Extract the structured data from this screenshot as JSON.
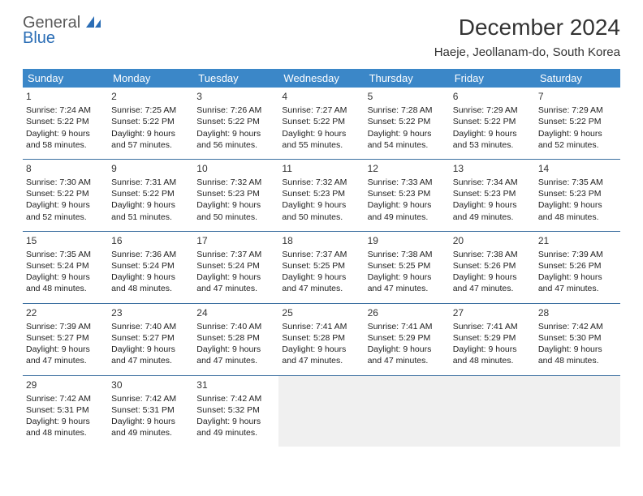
{
  "brand": {
    "line1": "General",
    "line2": "Blue"
  },
  "title": "December 2024",
  "location": "Haeje, Jeollanam-do, South Korea",
  "colors": {
    "header_bg": "#3b87c8",
    "header_text": "#ffffff",
    "divider": "#3b6fa0",
    "empty_cell": "#f0f0f0",
    "brand_gray": "#5a5a5a",
    "brand_blue": "#2a6db5",
    "page_bg": "#ffffff",
    "text": "#222222"
  },
  "typography": {
    "title_fontsize": 28,
    "location_fontsize": 15,
    "dayheader_fontsize": 13,
    "cell_fontsize": 10.5,
    "daynum_fontsize": 12
  },
  "day_labels": [
    "Sunday",
    "Monday",
    "Tuesday",
    "Wednesday",
    "Thursday",
    "Friday",
    "Saturday"
  ],
  "weeks": [
    [
      {
        "n": "1",
        "sr": "7:24 AM",
        "ss": "5:22 PM",
        "dl": "9 hours and 58 minutes."
      },
      {
        "n": "2",
        "sr": "7:25 AM",
        "ss": "5:22 PM",
        "dl": "9 hours and 57 minutes."
      },
      {
        "n": "3",
        "sr": "7:26 AM",
        "ss": "5:22 PM",
        "dl": "9 hours and 56 minutes."
      },
      {
        "n": "4",
        "sr": "7:27 AM",
        "ss": "5:22 PM",
        "dl": "9 hours and 55 minutes."
      },
      {
        "n": "5",
        "sr": "7:28 AM",
        "ss": "5:22 PM",
        "dl": "9 hours and 54 minutes."
      },
      {
        "n": "6",
        "sr": "7:29 AM",
        "ss": "5:22 PM",
        "dl": "9 hours and 53 minutes."
      },
      {
        "n": "7",
        "sr": "7:29 AM",
        "ss": "5:22 PM",
        "dl": "9 hours and 52 minutes."
      }
    ],
    [
      {
        "n": "8",
        "sr": "7:30 AM",
        "ss": "5:22 PM",
        "dl": "9 hours and 52 minutes."
      },
      {
        "n": "9",
        "sr": "7:31 AM",
        "ss": "5:22 PM",
        "dl": "9 hours and 51 minutes."
      },
      {
        "n": "10",
        "sr": "7:32 AM",
        "ss": "5:23 PM",
        "dl": "9 hours and 50 minutes."
      },
      {
        "n": "11",
        "sr": "7:32 AM",
        "ss": "5:23 PM",
        "dl": "9 hours and 50 minutes."
      },
      {
        "n": "12",
        "sr": "7:33 AM",
        "ss": "5:23 PM",
        "dl": "9 hours and 49 minutes."
      },
      {
        "n": "13",
        "sr": "7:34 AM",
        "ss": "5:23 PM",
        "dl": "9 hours and 49 minutes."
      },
      {
        "n": "14",
        "sr": "7:35 AM",
        "ss": "5:23 PM",
        "dl": "9 hours and 48 minutes."
      }
    ],
    [
      {
        "n": "15",
        "sr": "7:35 AM",
        "ss": "5:24 PM",
        "dl": "9 hours and 48 minutes."
      },
      {
        "n": "16",
        "sr": "7:36 AM",
        "ss": "5:24 PM",
        "dl": "9 hours and 48 minutes."
      },
      {
        "n": "17",
        "sr": "7:37 AM",
        "ss": "5:24 PM",
        "dl": "9 hours and 47 minutes."
      },
      {
        "n": "18",
        "sr": "7:37 AM",
        "ss": "5:25 PM",
        "dl": "9 hours and 47 minutes."
      },
      {
        "n": "19",
        "sr": "7:38 AM",
        "ss": "5:25 PM",
        "dl": "9 hours and 47 minutes."
      },
      {
        "n": "20",
        "sr": "7:38 AM",
        "ss": "5:26 PM",
        "dl": "9 hours and 47 minutes."
      },
      {
        "n": "21",
        "sr": "7:39 AM",
        "ss": "5:26 PM",
        "dl": "9 hours and 47 minutes."
      }
    ],
    [
      {
        "n": "22",
        "sr": "7:39 AM",
        "ss": "5:27 PM",
        "dl": "9 hours and 47 minutes."
      },
      {
        "n": "23",
        "sr": "7:40 AM",
        "ss": "5:27 PM",
        "dl": "9 hours and 47 minutes."
      },
      {
        "n": "24",
        "sr": "7:40 AM",
        "ss": "5:28 PM",
        "dl": "9 hours and 47 minutes."
      },
      {
        "n": "25",
        "sr": "7:41 AM",
        "ss": "5:28 PM",
        "dl": "9 hours and 47 minutes."
      },
      {
        "n": "26",
        "sr": "7:41 AM",
        "ss": "5:29 PM",
        "dl": "9 hours and 47 minutes."
      },
      {
        "n": "27",
        "sr": "7:41 AM",
        "ss": "5:29 PM",
        "dl": "9 hours and 48 minutes."
      },
      {
        "n": "28",
        "sr": "7:42 AM",
        "ss": "5:30 PM",
        "dl": "9 hours and 48 minutes."
      }
    ],
    [
      {
        "n": "29",
        "sr": "7:42 AM",
        "ss": "5:31 PM",
        "dl": "9 hours and 48 minutes."
      },
      {
        "n": "30",
        "sr": "7:42 AM",
        "ss": "5:31 PM",
        "dl": "9 hours and 49 minutes."
      },
      {
        "n": "31",
        "sr": "7:42 AM",
        "ss": "5:32 PM",
        "dl": "9 hours and 49 minutes."
      },
      null,
      null,
      null,
      null
    ]
  ],
  "labels": {
    "sunrise_prefix": "Sunrise: ",
    "sunset_prefix": "Sunset: ",
    "daylight_prefix": "Daylight: "
  }
}
